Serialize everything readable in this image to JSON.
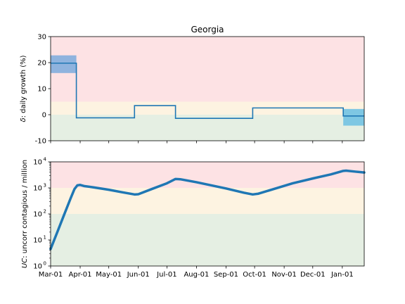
{
  "chart_data": [
    {
      "type": "line",
      "title": "Georgia",
      "ylabel_symbol": "δ",
      "ylabel_rest": ": daily growth (%)",
      "ylim": [
        -10,
        30
      ],
      "yticks": [
        -10,
        0,
        10,
        20,
        30
      ],
      "zones": [
        {
          "from": -10,
          "to": 0,
          "color": "#e5efe3"
        },
        {
          "from": 0,
          "to": 5,
          "color": "#fdf3e1"
        },
        {
          "from": 5,
          "to": 30,
          "color": "#fde2e4"
        }
      ],
      "line_color": "#1f77b4",
      "steps": [
        {
          "x0": "Mar-01",
          "x1": "Mar-28",
          "y": 19.8
        },
        {
          "x0": "Mar-28",
          "x1": "May-28",
          "y": -1.2
        },
        {
          "x0": "May-28",
          "x1": "Jul-10",
          "y": 3.5
        },
        {
          "x0": "Jul-10",
          "x1": "Sep-29",
          "y": -1.4
        },
        {
          "x0": "Sep-29",
          "x1": "Jan-02",
          "y": 2.6
        },
        {
          "x0": "Jan-02",
          "x1": "Jan-24",
          "y": -0.5
        }
      ],
      "bands": [
        {
          "x0": "Mar-01",
          "x1": "Mar-28",
          "ylow": 16.0,
          "yhigh": 22.8,
          "color": "#8fb3de"
        },
        {
          "x0": "Jan-02",
          "x1": "Jan-24",
          "ylow": -4.2,
          "yhigh": 2.2,
          "color": "#7ec7e3"
        }
      ]
    },
    {
      "type": "line",
      "ylabel_symbol": "UC",
      "ylabel_rest": ": uncorr contagious / million",
      "yscale": "log",
      "ylim": [
        1,
        10000
      ],
      "yticks": [
        {
          "value": 1,
          "base": "10",
          "exp": "0"
        },
        {
          "value": 10,
          "base": "10",
          "exp": "1"
        },
        {
          "value": 100,
          "base": "10",
          "exp": "2"
        },
        {
          "value": 1000,
          "base": "10",
          "exp": "3"
        },
        {
          "value": 10000,
          "base": "10",
          "exp": "4"
        }
      ],
      "zones": [
        {
          "from": 1,
          "to": 100,
          "color": "#e5efe3"
        },
        {
          "from": 100,
          "to": 1000,
          "color": "#fdf3e1"
        },
        {
          "from": 1000,
          "to": 10000,
          "color": "#fde2e4"
        }
      ],
      "line_color": "#1f77b4",
      "series": [
        {
          "x": "Mar-01",
          "y": 4.5
        },
        {
          "x": "Mar-08",
          "y": 20
        },
        {
          "x": "Mar-15",
          "y": 90
        },
        {
          "x": "Mar-22",
          "y": 400
        },
        {
          "x": "Mar-26",
          "y": 900
        },
        {
          "x": "Mar-29",
          "y": 1250
        },
        {
          "x": "Apr-01",
          "y": 1300
        },
        {
          "x": "Apr-05",
          "y": 1180
        },
        {
          "x": "Apr-15",
          "y": 1050
        },
        {
          "x": "May-01",
          "y": 850
        },
        {
          "x": "May-15",
          "y": 680
        },
        {
          "x": "May-28",
          "y": 560
        },
        {
          "x": "Jun-01",
          "y": 570
        },
        {
          "x": "Jun-15",
          "y": 900
        },
        {
          "x": "Jul-01",
          "y": 1500
        },
        {
          "x": "Jul-10",
          "y": 2200
        },
        {
          "x": "Jul-15",
          "y": 2150
        },
        {
          "x": "Aug-01",
          "y": 1650
        },
        {
          "x": "Sep-01",
          "y": 950
        },
        {
          "x": "Sep-20",
          "y": 650
        },
        {
          "x": "Sep-29",
          "y": 560
        },
        {
          "x": "Oct-05",
          "y": 600
        },
        {
          "x": "Oct-20",
          "y": 880
        },
        {
          "x": "Nov-10",
          "y": 1500
        },
        {
          "x": "Dec-01",
          "y": 2300
        },
        {
          "x": "Dec-20",
          "y": 3300
        },
        {
          "x": "Jan-02",
          "y": 4500
        },
        {
          "x": "Jan-05",
          "y": 4600
        },
        {
          "x": "Jan-15",
          "y": 4200
        },
        {
          "x": "Jan-24",
          "y": 3900
        }
      ]
    }
  ],
  "xaxis": {
    "xlim": [
      "Mar-01",
      "Jan-24"
    ],
    "ticks": [
      "Mar-01",
      "Apr-01",
      "May-01",
      "Jun-01",
      "Jul-01",
      "Aug-01",
      "Sep-01",
      "Oct-01",
      "Nov-01",
      "Dec-01",
      "Jan-01"
    ]
  }
}
